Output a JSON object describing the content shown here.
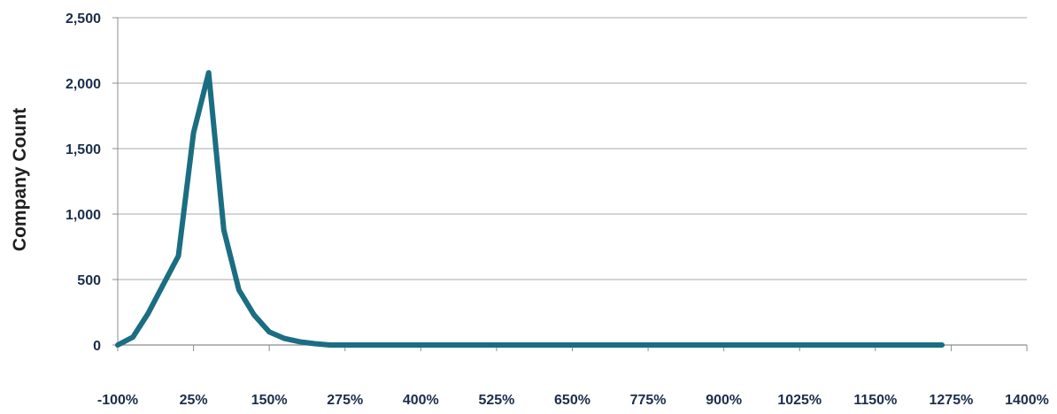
{
  "chart_data": {
    "type": "line",
    "title": "",
    "xlabel": "",
    "ylabel": "Company Count",
    "ylim": [
      0,
      2500
    ],
    "xlim": [
      -100,
      1400
    ],
    "grid": "horizontal",
    "legend": "none",
    "y_ticks": [
      "0",
      "500",
      "1,000",
      "1,500",
      "2,000",
      "2,500"
    ],
    "y_tick_values": [
      0,
      500,
      1000,
      1500,
      2000,
      2500
    ],
    "x_ticks": [
      "-100%",
      "25%",
      "150%",
      "275%",
      "400%",
      "525%",
      "650%",
      "775%",
      "900%",
      "1025%",
      "1150%",
      "1275%",
      "1400%"
    ],
    "x_tick_values": [
      -100,
      25,
      150,
      275,
      400,
      525,
      650,
      775,
      900,
      1025,
      1150,
      1275,
      1400
    ],
    "series": [
      {
        "color": "#1b6e82",
        "x": [
          -100,
          -75,
          -50,
          -25,
          0,
          25,
          50,
          75,
          100,
          125,
          150,
          175,
          200,
          225,
          250,
          275,
          300,
          325,
          350,
          375,
          400,
          450,
          500,
          550,
          600,
          650,
          700,
          750,
          800,
          850,
          900,
          950,
          1000,
          1050,
          1100,
          1150,
          1200,
          1250,
          1260
        ],
        "y": [
          0,
          60,
          240,
          460,
          680,
          1620,
          2080,
          880,
          420,
          230,
          100,
          50,
          25,
          10,
          0,
          0,
          0,
          0,
          0,
          0,
          0,
          0,
          0,
          0,
          0,
          0,
          0,
          0,
          0,
          0,
          0,
          0,
          0,
          0,
          0,
          0,
          0,
          0,
          0
        ]
      }
    ]
  }
}
